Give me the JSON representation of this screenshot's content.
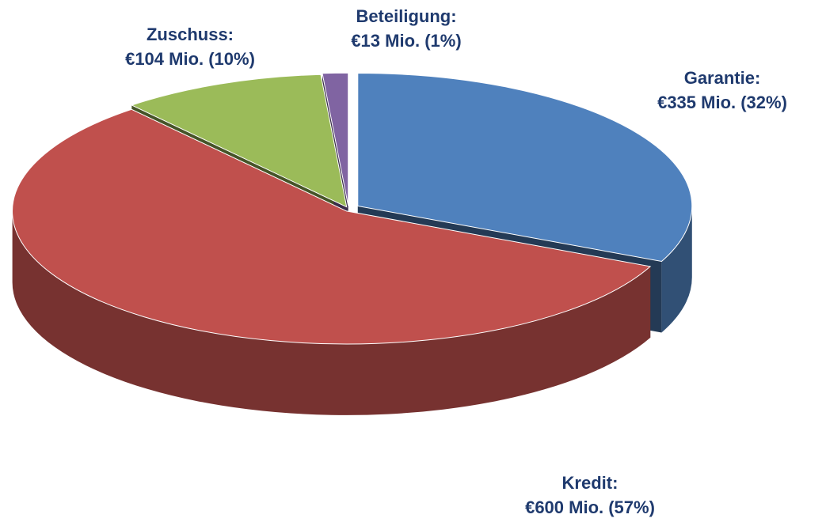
{
  "chart_data": {
    "type": "pie",
    "categories": [
      "Garantie:",
      "Kredit:",
      "Zuschuss:",
      "Beteiligung:"
    ],
    "values": [
      335,
      600,
      104,
      13
    ],
    "value_labels": [
      "€335 Mio. (32%)",
      "€600 Mio. (57%)",
      "€104 Mio. (10%)",
      "€13 Mio. (1%)"
    ],
    "colors": [
      "#4f81bd",
      "#c0504d",
      "#9bbb59",
      "#8064a2"
    ]
  }
}
